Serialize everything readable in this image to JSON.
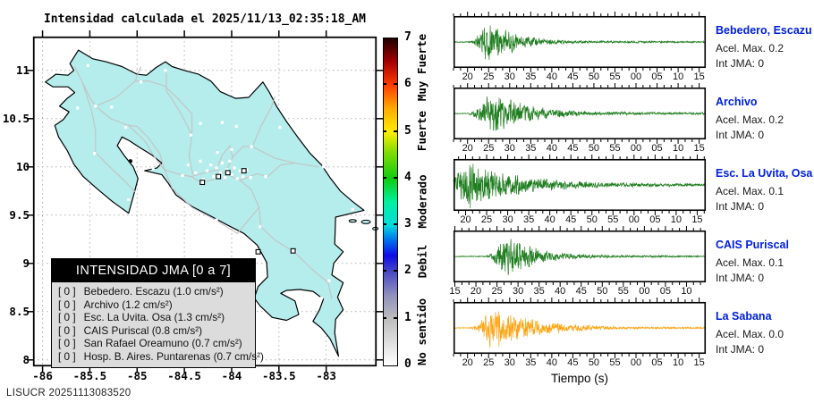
{
  "title": "Intensidad calculada el 2025/11/13_02:35:18_AM",
  "watermark": "LISUCR 20251113083520",
  "map": {
    "land_color": "#b5ecec",
    "x_tick_labels": [
      "-86",
      "-85.5",
      "-85",
      "-84.5",
      "-84",
      "-83.5",
      "-83"
    ],
    "x_tick_values": [
      -86,
      -85.5,
      -85,
      -84.5,
      -84,
      -83.5,
      -83
    ],
    "y_tick_labels": [
      "11",
      "10.5",
      "10",
      "9.5",
      "9",
      "8.5",
      "8"
    ],
    "y_tick_values": [
      11,
      10.5,
      10,
      9.5,
      9,
      8.5,
      8
    ],
    "legend": {
      "title": "INTENSIDAD JMA [0 a 7]",
      "items": [
        {
          "badge": "[ 0 ]",
          "label": "Bebedero. Escazu (1.0 cm/s²)"
        },
        {
          "badge": "[ 0 ]",
          "label": "Archivo (1.2 cm/s²)"
        },
        {
          "badge": "[ 0 ]",
          "label": "Esc. La Uvita. Osa (1.3 cm/s²)"
        },
        {
          "badge": "[ 0 ]",
          "label": "CAIS Puriscal (0.8 cm/s²)"
        },
        {
          "badge": "[ 0 ]",
          "label": "San Rafael Oreamuno (0.7 cm/s²)"
        },
        {
          "badge": "[ 0 ]",
          "label": "Hosp. B. Aires. Puntarenas (0.7 cm/s²)"
        }
      ]
    }
  },
  "colorbar": {
    "min": 0,
    "max": 7,
    "tick_labels": [
      "0",
      "1",
      "2",
      "3",
      "4",
      "5",
      "6",
      "7"
    ],
    "tick_values": [
      0,
      1,
      2,
      3,
      4,
      5,
      6,
      7
    ],
    "category_labels": [
      {
        "text": "Muy Fuerte",
        "value": 6.35
      },
      {
        "text": "Fuerte",
        "value": 5.0
      },
      {
        "text": "Moderado",
        "value": 3.5
      },
      {
        "text": "Debil",
        "value": 2.2
      },
      {
        "text": "No sentido",
        "value": 0.7
      }
    ],
    "gradient_stops": [
      {
        "value": 0,
        "color": "#ffffff"
      },
      {
        "value": 1,
        "color": "#bdbdbd"
      },
      {
        "value": 1.5,
        "color": "#9090bd"
      },
      {
        "value": 2,
        "color": "#4949c4"
      },
      {
        "value": 2.35,
        "color": "#0d0de4"
      },
      {
        "value": 2.7,
        "color": "#0077ee"
      },
      {
        "value": 3,
        "color": "#00dcdc"
      },
      {
        "value": 3.5,
        "color": "#00f0a0"
      },
      {
        "value": 4,
        "color": "#10cc10"
      },
      {
        "value": 4.6,
        "color": "#8ade00"
      },
      {
        "value": 5,
        "color": "#ffee00"
      },
      {
        "value": 5.5,
        "color": "#ffaa00"
      },
      {
        "value": 6,
        "color": "#ff3c00"
      },
      {
        "value": 6.5,
        "color": "#a40000"
      },
      {
        "value": 7,
        "color": "#200000"
      }
    ]
  },
  "seismograms": {
    "xlabel": "Tiempo (s)",
    "panels": [
      {
        "station": "Bebedero, Escazu",
        "acel_max": "Acel. Max. 0.2",
        "int_jma": "Int JMA: 0",
        "trace_color": "#1e7d1e",
        "tick_labels": [
          "20",
          "25",
          "30",
          "35",
          "40",
          "45",
          "50",
          "55",
          "00",
          "05",
          "10",
          "15"
        ]
      },
      {
        "station": "Archivo",
        "acel_max": "Acel. Max. 0.2",
        "int_jma": "Int JMA: 0",
        "trace_color": "#1e7d1e",
        "tick_labels": [
          "20",
          "25",
          "30",
          "35",
          "40",
          "45",
          "50",
          "55",
          "00",
          "05",
          "10",
          "15"
        ]
      },
      {
        "station": "Esc. La Uvita, Osa",
        "acel_max": "Acel. Max. 0.1",
        "int_jma": "Int JMA: 0",
        "trace_color": "#1e7d1e",
        "tick_labels": [
          "20",
          "25",
          "30",
          "35",
          "40",
          "45",
          "50",
          "55",
          "00",
          "05",
          "10",
          "15"
        ]
      },
      {
        "station": "CAIS Puriscal",
        "acel_max": "Acel. Max. 0.1",
        "int_jma": "Int JMA: 0",
        "trace_color": "#1e7d1e",
        "tick_labels": [
          "15",
          "20",
          "25",
          "30",
          "35",
          "40",
          "45",
          "50",
          "55",
          "00",
          "05",
          "10"
        ]
      },
      {
        "station": "La Sabana",
        "acel_max": "Acel. Max. 0.0",
        "int_jma": "Int JMA: 0",
        "trace_color": "#ffa515",
        "tick_labels": [
          "20",
          "25",
          "30",
          "35",
          "40",
          "45",
          "50",
          "55",
          "00",
          "05",
          "10",
          "15"
        ]
      }
    ]
  }
}
